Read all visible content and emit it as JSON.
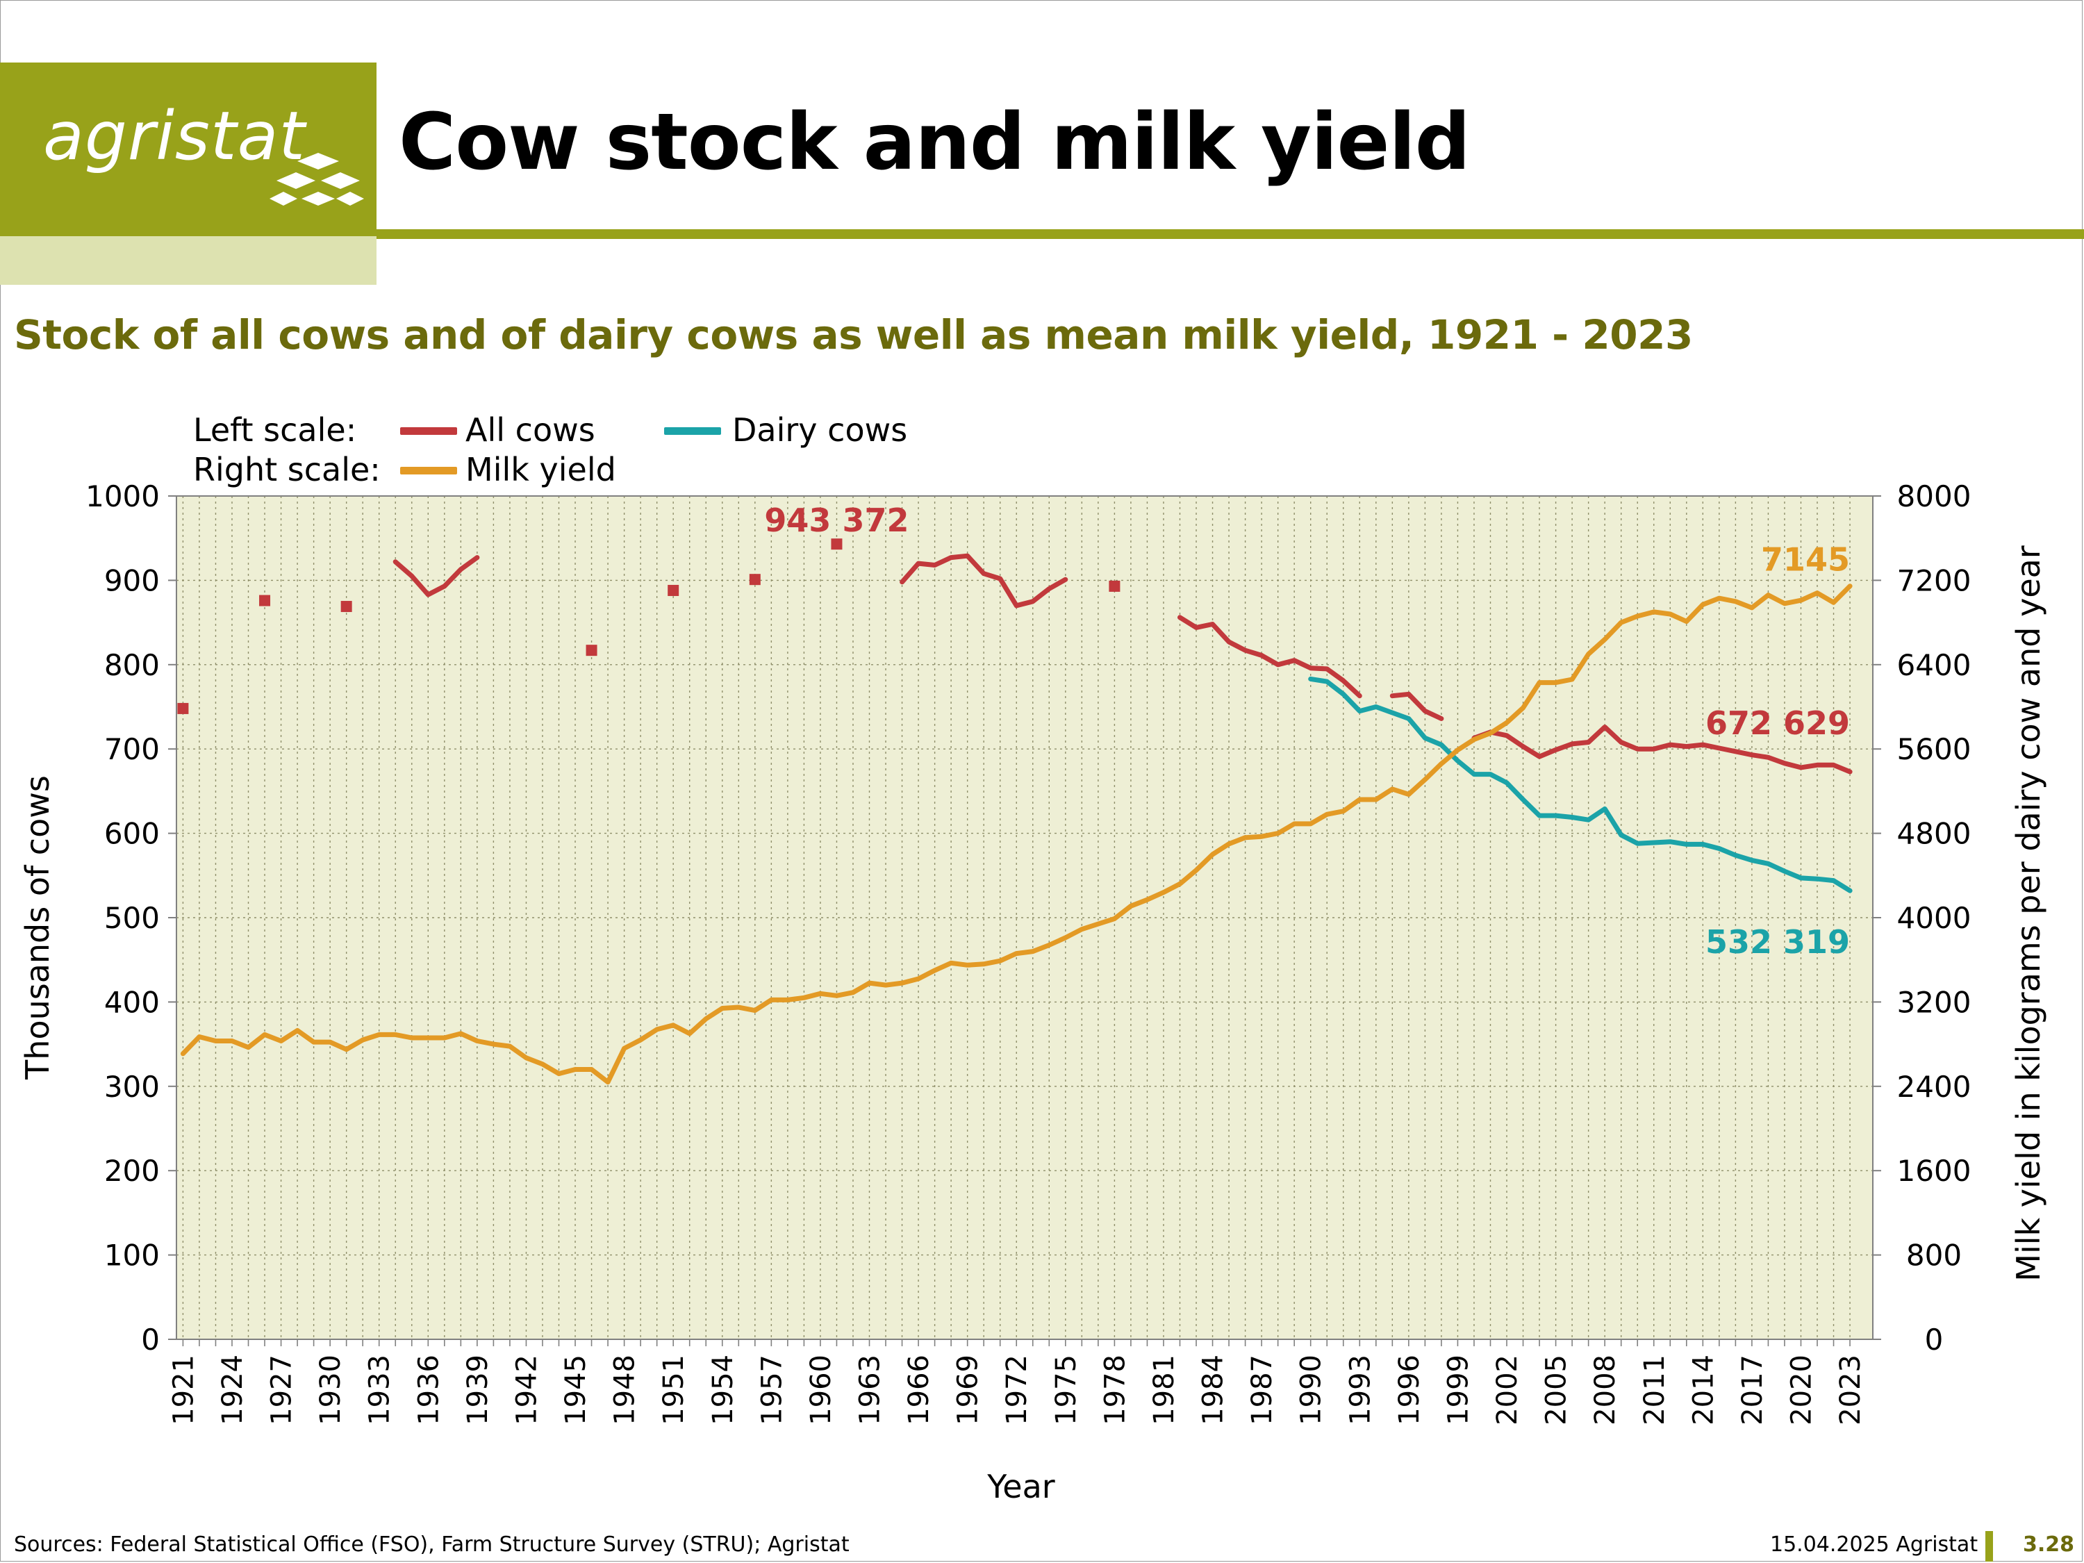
{
  "header": {
    "logo_text": "agristat",
    "title": "Cow stock and milk yield",
    "subtitle": "Stock of all cows and of dairy cows as well as mean milk yield, 1921 - 2023"
  },
  "legend": {
    "left_scale_label": "Left scale:",
    "right_scale_label": "Right scale:",
    "all_cows": "All cows",
    "dairy_cows": "Dairy cows",
    "milk_yield": "Milk yield"
  },
  "footer": {
    "sources": "Sources: Federal Statistical Office (FSO), Farm Structure Survey (STRU); Agristat",
    "date": "15.04.2025 Agristat",
    "page": "3.28"
  },
  "colors": {
    "brand": "#98a21a",
    "brand_light": "#dde2b0",
    "subtitle": "#6b6a0c",
    "plot_bg": "#eeefd5",
    "all_cows": "#c2393c",
    "dairy_cows": "#1ba3a8",
    "milk_yield": "#e39a25"
  },
  "chart_data": {
    "type": "line",
    "title": "Stock of all cows and of dairy cows as well as mean milk yield, 1921 - 2023",
    "xlabel": "Year",
    "ylabel": "Thousands of cows",
    "y2label": "Milk yield in kilograms per dairy cow and year",
    "xlim": [
      1921,
      2023
    ],
    "ylim": [
      0,
      1000
    ],
    "y2lim": [
      0,
      8000
    ],
    "x_ticks": [
      1921,
      1924,
      1927,
      1930,
      1933,
      1936,
      1939,
      1942,
      1945,
      1948,
      1951,
      1954,
      1957,
      1960,
      1963,
      1966,
      1969,
      1972,
      1975,
      1978,
      1981,
      1984,
      1987,
      1990,
      1993,
      1996,
      1999,
      2002,
      2005,
      2008,
      2011,
      2014,
      2017,
      2020,
      2023
    ],
    "y_ticks": [
      0,
      100,
      200,
      300,
      400,
      500,
      600,
      700,
      800,
      900,
      1000
    ],
    "y2_ticks": [
      0,
      800,
      1600,
      2400,
      3200,
      4000,
      4800,
      5600,
      6400,
      7200,
      8000
    ],
    "grid": true,
    "legend_position": "top-left",
    "series": [
      {
        "name": "All cows",
        "axis": "left",
        "markers": [
          [
            1921,
            748
          ],
          [
            1926,
            876
          ],
          [
            1931,
            869
          ],
          [
            1946,
            817
          ],
          [
            1951,
            888
          ],
          [
            1956,
            901
          ],
          [
            1961,
            943
          ],
          [
            1978,
            893
          ]
        ],
        "segments": [
          [
            [
              1934,
              922
            ],
            [
              1935,
              905
            ],
            [
              1936,
              883
            ],
            [
              1937,
              893
            ],
            [
              1938,
              913
            ],
            [
              1939,
              927
            ]
          ],
          [
            [
              1965,
              898
            ],
            [
              1966,
              920
            ],
            [
              1967,
              918
            ],
            [
              1968,
              927
            ],
            [
              1969,
              929
            ],
            [
              1970,
              908
            ],
            [
              1971,
              902
            ],
            [
              1972,
              870
            ],
            [
              1973,
              875
            ],
            [
              1974,
              890
            ],
            [
              1975,
              901
            ]
          ],
          [
            [
              1982,
              856
            ],
            [
              1983,
              844
            ],
            [
              1984,
              848
            ],
            [
              1985,
              827
            ],
            [
              1986,
              817
            ],
            [
              1987,
              811
            ],
            [
              1988,
              800
            ],
            [
              1989,
              805
            ],
            [
              1990,
              796
            ],
            [
              1991,
              795
            ],
            [
              1992,
              781
            ],
            [
              1993,
              763
            ]
          ],
          [
            [
              1995,
              763
            ],
            [
              1996,
              765
            ],
            [
              1997,
              745
            ],
            [
              1998,
              736
            ]
          ],
          [
            [
              2000,
              713
            ],
            [
              2001,
              720
            ],
            [
              2002,
              716
            ],
            [
              2003,
              703
            ],
            [
              2004,
              691
            ],
            [
              2005,
              699
            ],
            [
              2006,
              706
            ],
            [
              2007,
              708
            ],
            [
              2008,
              726
            ],
            [
              2009,
              708
            ],
            [
              2010,
              700
            ],
            [
              2011,
              700
            ],
            [
              2012,
              705
            ],
            [
              2013,
              703
            ],
            [
              2014,
              705
            ],
            [
              2015,
              701
            ],
            [
              2016,
              697
            ],
            [
              2017,
              693
            ],
            [
              2018,
              690
            ],
            [
              2019,
              683
            ],
            [
              2020,
              678
            ],
            [
              2021,
              681
            ],
            [
              2022,
              681
            ],
            [
              2023,
              673
            ]
          ]
        ],
        "last_label": "672 629",
        "peak_label": "943 372"
      },
      {
        "name": "Dairy cows",
        "axis": "left",
        "segments": [
          [
            [
              1990,
              783
            ],
            [
              1991,
              780
            ],
            [
              1992,
              765
            ],
            [
              1993,
              745
            ],
            [
              1994,
              750
            ],
            [
              1995,
              743
            ],
            [
              1996,
              736
            ],
            [
              1997,
              713
            ],
            [
              1998,
              705
            ],
            [
              1999,
              686
            ],
            [
              2000,
              670
            ],
            [
              2001,
              670
            ],
            [
              2002,
              660
            ],
            [
              2003,
              640
            ],
            [
              2004,
              621
            ],
            [
              2005,
              621
            ],
            [
              2006,
              619
            ],
            [
              2007,
              616
            ],
            [
              2008,
              629
            ],
            [
              2009,
              598
            ],
            [
              2010,
              588
            ],
            [
              2011,
              589
            ],
            [
              2012,
              590
            ],
            [
              2013,
              587
            ],
            [
              2014,
              587
            ],
            [
              2015,
              582
            ],
            [
              2016,
              574
            ],
            [
              2017,
              568
            ],
            [
              2018,
              564
            ],
            [
              2019,
              555
            ],
            [
              2020,
              547
            ],
            [
              2021,
              546
            ],
            [
              2022,
              544
            ],
            [
              2023,
              532
            ]
          ]
        ],
        "last_label": "532 319"
      },
      {
        "name": "Milk yield",
        "axis": "right",
        "segments": [
          [
            [
              1921,
              2710
            ],
            [
              1922,
              2870
            ],
            [
              1923,
              2830
            ],
            [
              1924,
              2830
            ],
            [
              1925,
              2770
            ],
            [
              1926,
              2890
            ],
            [
              1927,
              2830
            ],
            [
              1928,
              2930
            ],
            [
              1929,
              2820
            ],
            [
              1930,
              2820
            ],
            [
              1931,
              2750
            ],
            [
              1932,
              2840
            ],
            [
              1933,
              2890
            ],
            [
              1934,
              2890
            ],
            [
              1935,
              2860
            ],
            [
              1936,
              2860
            ],
            [
              1937,
              2860
            ],
            [
              1938,
              2900
            ],
            [
              1939,
              2830
            ],
            [
              1940,
              2800
            ],
            [
              1941,
              2780
            ],
            [
              1942,
              2670
            ],
            [
              1943,
              2610
            ],
            [
              1944,
              2520
            ],
            [
              1945,
              2560
            ],
            [
              1946,
              2560
            ],
            [
              1947,
              2440
            ],
            [
              1948,
              2760
            ],
            [
              1949,
              2840
            ],
            [
              1950,
              2940
            ],
            [
              1951,
              2980
            ],
            [
              1952,
              2900
            ],
            [
              1953,
              3040
            ],
            [
              1954,
              3140
            ],
            [
              1955,
              3150
            ],
            [
              1956,
              3120
            ],
            [
              1957,
              3220
            ],
            [
              1958,
              3220
            ],
            [
              1959,
              3240
            ],
            [
              1960,
              3280
            ],
            [
              1961,
              3260
            ],
            [
              1962,
              3290
            ],
            [
              1963,
              3380
            ],
            [
              1964,
              3360
            ],
            [
              1965,
              3380
            ],
            [
              1966,
              3420
            ],
            [
              1967,
              3500
            ],
            [
              1968,
              3570
            ],
            [
              1969,
              3550
            ],
            [
              1970,
              3560
            ],
            [
              1971,
              3590
            ],
            [
              1972,
              3660
            ],
            [
              1973,
              3680
            ],
            [
              1974,
              3740
            ],
            [
              1975,
              3810
            ],
            [
              1976,
              3890
            ],
            [
              1977,
              3940
            ],
            [
              1978,
              3990
            ],
            [
              1979,
              4110
            ],
            [
              1980,
              4170
            ],
            [
              1981,
              4240
            ],
            [
              1982,
              4320
            ],
            [
              1983,
              4450
            ],
            [
              1984,
              4600
            ],
            [
              1985,
              4700
            ],
            [
              1986,
              4760
            ],
            [
              1987,
              4770
            ],
            [
              1988,
              4800
            ],
            [
              1989,
              4890
            ],
            [
              1990,
              4890
            ],
            [
              1991,
              4980
            ],
            [
              1992,
              5010
            ],
            [
              1993,
              5120
            ],
            [
              1994,
              5120
            ],
            [
              1995,
              5220
            ],
            [
              1996,
              5170
            ],
            [
              1997,
              5310
            ],
            [
              1998,
              5460
            ],
            [
              1999,
              5590
            ],
            [
              2000,
              5690
            ],
            [
              2001,
              5750
            ],
            [
              2002,
              5850
            ],
            [
              2003,
              5990
            ],
            [
              2004,
              6230
            ],
            [
              2005,
              6230
            ],
            [
              2006,
              6260
            ],
            [
              2007,
              6500
            ],
            [
              2008,
              6640
            ],
            [
              2009,
              6800
            ],
            [
              2010,
              6860
            ],
            [
              2011,
              6900
            ],
            [
              2012,
              6880
            ],
            [
              2013,
              6810
            ],
            [
              2014,
              6970
            ],
            [
              2015,
              7030
            ],
            [
              2016,
              7000
            ],
            [
              2017,
              6940
            ],
            [
              2018,
              7060
            ],
            [
              2019,
              6980
            ],
            [
              2020,
              7010
            ],
            [
              2021,
              7080
            ],
            [
              2022,
              6990
            ],
            [
              2023,
              7145
            ]
          ]
        ],
        "last_label": "7145"
      }
    ]
  }
}
